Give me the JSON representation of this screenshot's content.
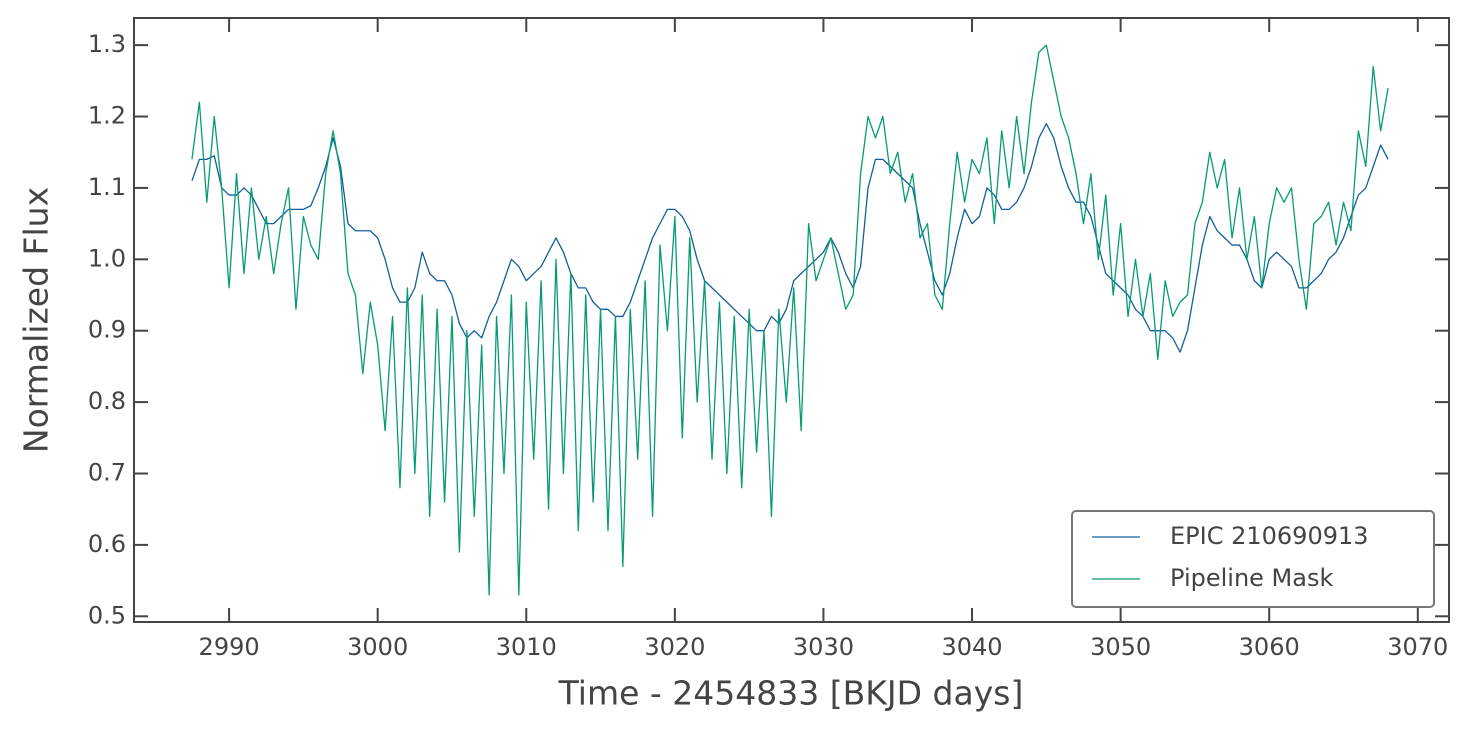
{
  "chart_data": {
    "type": "line",
    "xlabel": "Time - 2454833 [BKJD days]",
    "ylabel": "Normalized Flux",
    "xlim": [
      2983.6,
      3072.1
    ],
    "ylim": [
      0.492,
      1.338
    ],
    "xticks": [
      2990,
      3000,
      3010,
      3020,
      3030,
      3040,
      3050,
      3060,
      3070
    ],
    "yticks": [
      0.5,
      0.6,
      0.7,
      0.8,
      0.9,
      {
        "value": 1,
        "label": "1.0"
      },
      1.1,
      1.2,
      1.3
    ],
    "legend": "lower right",
    "x": [
      2987.5,
      2988,
      2988.5,
      2989,
      2989.5,
      2990,
      2990.5,
      2991,
      2991.5,
      2992,
      2992.5,
      2993,
      2993.5,
      2994,
      2994.5,
      2995,
      2995.5,
      2996,
      2996.5,
      2997,
      2997.5,
      2998,
      2998.5,
      2999,
      2999.5,
      3000,
      3000.5,
      3001,
      3001.5,
      3002,
      3002.5,
      3003,
      3003.5,
      3004,
      3004.5,
      3005,
      3005.5,
      3006,
      3006.5,
      3007,
      3007.5,
      3008,
      3008.5,
      3009,
      3009.5,
      3010,
      3010.5,
      3011,
      3011.5,
      3012,
      3012.5,
      3013,
      3013.5,
      3014,
      3014.5,
      3015,
      3015.5,
      3016,
      3016.5,
      3017,
      3017.5,
      3018,
      3018.5,
      3019,
      3019.5,
      3020,
      3020.5,
      3021,
      3021.5,
      3022,
      3022.5,
      3023,
      3023.5,
      3024,
      3024.5,
      3025,
      3025.5,
      3026,
      3026.5,
      3027,
      3027.5,
      3028,
      3028.5,
      3029,
      3029.5,
      3030,
      3030.5,
      3031,
      3031.5,
      3032,
      3032.5,
      3033,
      3033.5,
      3034,
      3034.5,
      3035,
      3035.5,
      3036,
      3036.5,
      3037,
      3037.5,
      3038,
      3038.5,
      3039,
      3039.5,
      3040,
      3040.5,
      3041,
      3041.5,
      3042,
      3042.5,
      3043,
      3043.5,
      3044,
      3044.5,
      3045,
      3045.5,
      3046,
      3046.5,
      3047,
      3047.5,
      3048,
      3048.5,
      3049,
      3049.5,
      3050,
      3050.5,
      3051,
      3051.5,
      3052,
      3052.5,
      3053,
      3053.5,
      3054,
      3054.5,
      3055,
      3055.5,
      3056,
      3056.5,
      3057,
      3057.5,
      3058,
      3058.5,
      3059,
      3059.5,
      3060,
      3060.5,
      3061,
      3061.5,
      3062,
      3062.5,
      3063,
      3063.5,
      3064,
      3064.5,
      3065,
      3065.5,
      3066,
      3066.5,
      3067,
      3067.5,
      3068
    ],
    "series": [
      {
        "name": "EPIC 210690913",
        "color": "#125f9e",
        "values": [
          1.11,
          1.14,
          1.14,
          1.145,
          1.1,
          1.09,
          1.09,
          1.1,
          1.09,
          1.07,
          1.05,
          1.05,
          1.06,
          1.07,
          1.07,
          1.07,
          1.075,
          1.1,
          1.13,
          1.17,
          1.13,
          1.05,
          1.04,
          1.04,
          1.04,
          1.03,
          1.0,
          0.96,
          0.94,
          0.94,
          0.96,
          1.01,
          0.98,
          0.97,
          0.97,
          0.95,
          0.91,
          0.89,
          0.9,
          0.89,
          0.92,
          0.94,
          0.97,
          1.0,
          0.99,
          0.97,
          0.98,
          0.99,
          1.01,
          1.03,
          1.01,
          0.98,
          0.96,
          0.96,
          0.94,
          0.93,
          0.93,
          0.92,
          0.92,
          0.94,
          0.97,
          1.0,
          1.03,
          1.05,
          1.07,
          1.07,
          1.06,
          1.04,
          1.0,
          0.97,
          0.96,
          0.95,
          0.94,
          0.93,
          0.92,
          0.91,
          0.9,
          0.9,
          0.92,
          0.91,
          0.93,
          0.97,
          0.98,
          0.99,
          1.0,
          1.01,
          1.03,
          1.01,
          0.98,
          0.96,
          0.99,
          1.1,
          1.14,
          1.14,
          1.13,
          1.12,
          1.11,
          1.1,
          1.05,
          1.01,
          0.97,
          0.95,
          0.98,
          1.03,
          1.07,
          1.05,
          1.06,
          1.1,
          1.09,
          1.07,
          1.07,
          1.08,
          1.1,
          1.13,
          1.17,
          1.19,
          1.17,
          1.13,
          1.1,
          1.08,
          1.08,
          1.06,
          1.02,
          0.98,
          0.97,
          0.96,
          0.95,
          0.93,
          0.92,
          0.9,
          0.9,
          0.9,
          0.89,
          0.87,
          0.9,
          0.96,
          1.02,
          1.06,
          1.04,
          1.03,
          1.02,
          1.02,
          1.0,
          0.97,
          0.96,
          1.0,
          1.01,
          1.0,
          0.99,
          0.96,
          0.96,
          0.97,
          0.98,
          1.0,
          1.01,
          1.03,
          1.06,
          1.09,
          1.1,
          1.13,
          1.16,
          1.14
        ]
      },
      {
        "name": "Pipeline Mask",
        "color": "#069b73",
        "values": [
          1.14,
          1.22,
          1.08,
          1.2,
          1.1,
          0.96,
          1.12,
          0.98,
          1.1,
          1.0,
          1.06,
          0.98,
          1.05,
          1.1,
          0.93,
          1.06,
          1.02,
          1.0,
          1.12,
          1.18,
          1.12,
          0.98,
          0.95,
          0.84,
          0.94,
          0.88,
          0.76,
          0.92,
          0.68,
          0.96,
          0.7,
          0.95,
          0.64,
          0.93,
          0.66,
          0.92,
          0.59,
          0.9,
          0.64,
          0.88,
          0.53,
          0.92,
          0.7,
          0.95,
          0.53,
          0.94,
          0.72,
          0.97,
          0.65,
          1.0,
          0.7,
          0.98,
          0.62,
          0.95,
          0.66,
          0.93,
          0.62,
          0.92,
          0.57,
          0.93,
          0.72,
          0.97,
          0.64,
          1.02,
          0.9,
          1.06,
          0.75,
          1.03,
          0.8,
          0.97,
          0.72,
          0.94,
          0.7,
          0.92,
          0.68,
          0.93,
          0.73,
          0.9,
          0.64,
          0.93,
          0.8,
          0.96,
          0.76,
          1.05,
          0.97,
          1.0,
          1.03,
          0.98,
          0.93,
          0.95,
          1.12,
          1.2,
          1.17,
          1.2,
          1.12,
          1.15,
          1.08,
          1.12,
          1.03,
          1.05,
          0.95,
          0.93,
          1.05,
          1.15,
          1.08,
          1.14,
          1.12,
          1.17,
          1.05,
          1.18,
          1.1,
          1.2,
          1.12,
          1.22,
          1.29,
          1.3,
          1.25,
          1.2,
          1.17,
          1.12,
          1.05,
          1.12,
          1.0,
          1.09,
          0.95,
          1.05,
          0.92,
          1.0,
          0.92,
          0.98,
          0.86,
          0.97,
          0.92,
          0.94,
          0.95,
          1.05,
          1.08,
          1.15,
          1.1,
          1.14,
          1.03,
          1.1,
          1.0,
          1.06,
          0.96,
          1.05,
          1.1,
          1.08,
          1.1,
          1.0,
          0.93,
          1.05,
          1.06,
          1.08,
          1.02,
          1.08,
          1.04,
          1.18,
          1.13,
          1.27,
          1.18,
          1.24
        ]
      }
    ]
  }
}
